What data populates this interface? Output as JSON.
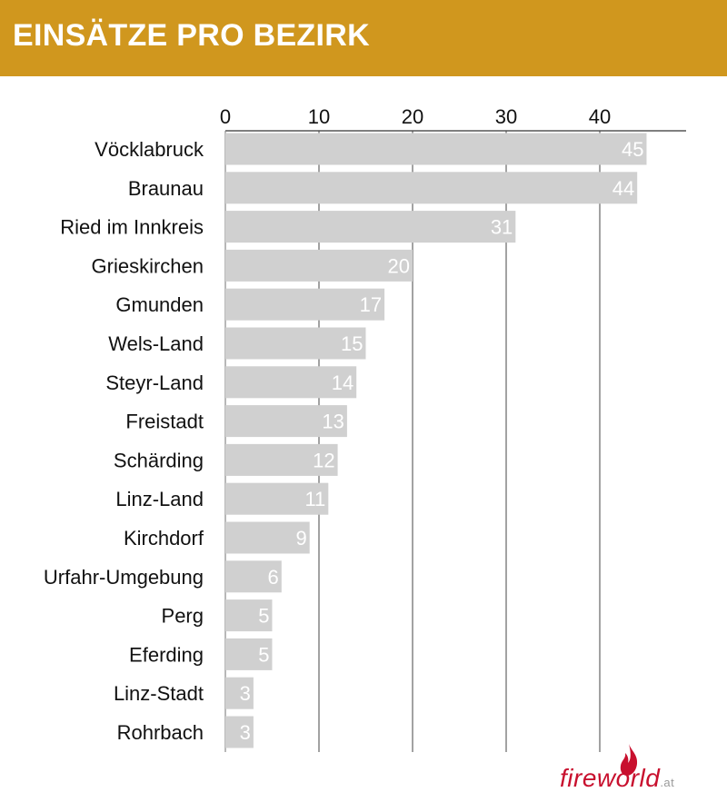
{
  "header": {
    "title": "EINSÄTZE PRO BEZIRK",
    "bg_color": "#d0971e"
  },
  "chart_data": {
    "type": "bar",
    "orientation": "horizontal",
    "title": "EINSÄTZE PRO BEZIRK",
    "xlabel": "",
    "ylabel": "",
    "xlim": [
      0,
      48
    ],
    "x_ticks": [
      0,
      10,
      20,
      30,
      40
    ],
    "x_axis_position": "top",
    "grid": true,
    "bar_color": "#d0d0d0",
    "label_color": "#ffffff",
    "categories": [
      "Vöcklabruck",
      "Braunau",
      "Ried im Innkreis",
      "Grieskirchen",
      "Gmunden",
      "Wels-Land",
      "Steyr-Land",
      "Freistadt",
      "Schärding",
      "Linz-Land",
      "Kirchdorf",
      "Urfahr-Umgebung",
      "Perg",
      "Eferding",
      "Linz-Stadt",
      "Rohrbach"
    ],
    "values": [
      45,
      44,
      31,
      20,
      17,
      15,
      14,
      13,
      12,
      11,
      9,
      6,
      5,
      5,
      3,
      3
    ]
  },
  "logo": {
    "main": "fireworld",
    "suffix": ".at",
    "color": "#c8102e"
  }
}
